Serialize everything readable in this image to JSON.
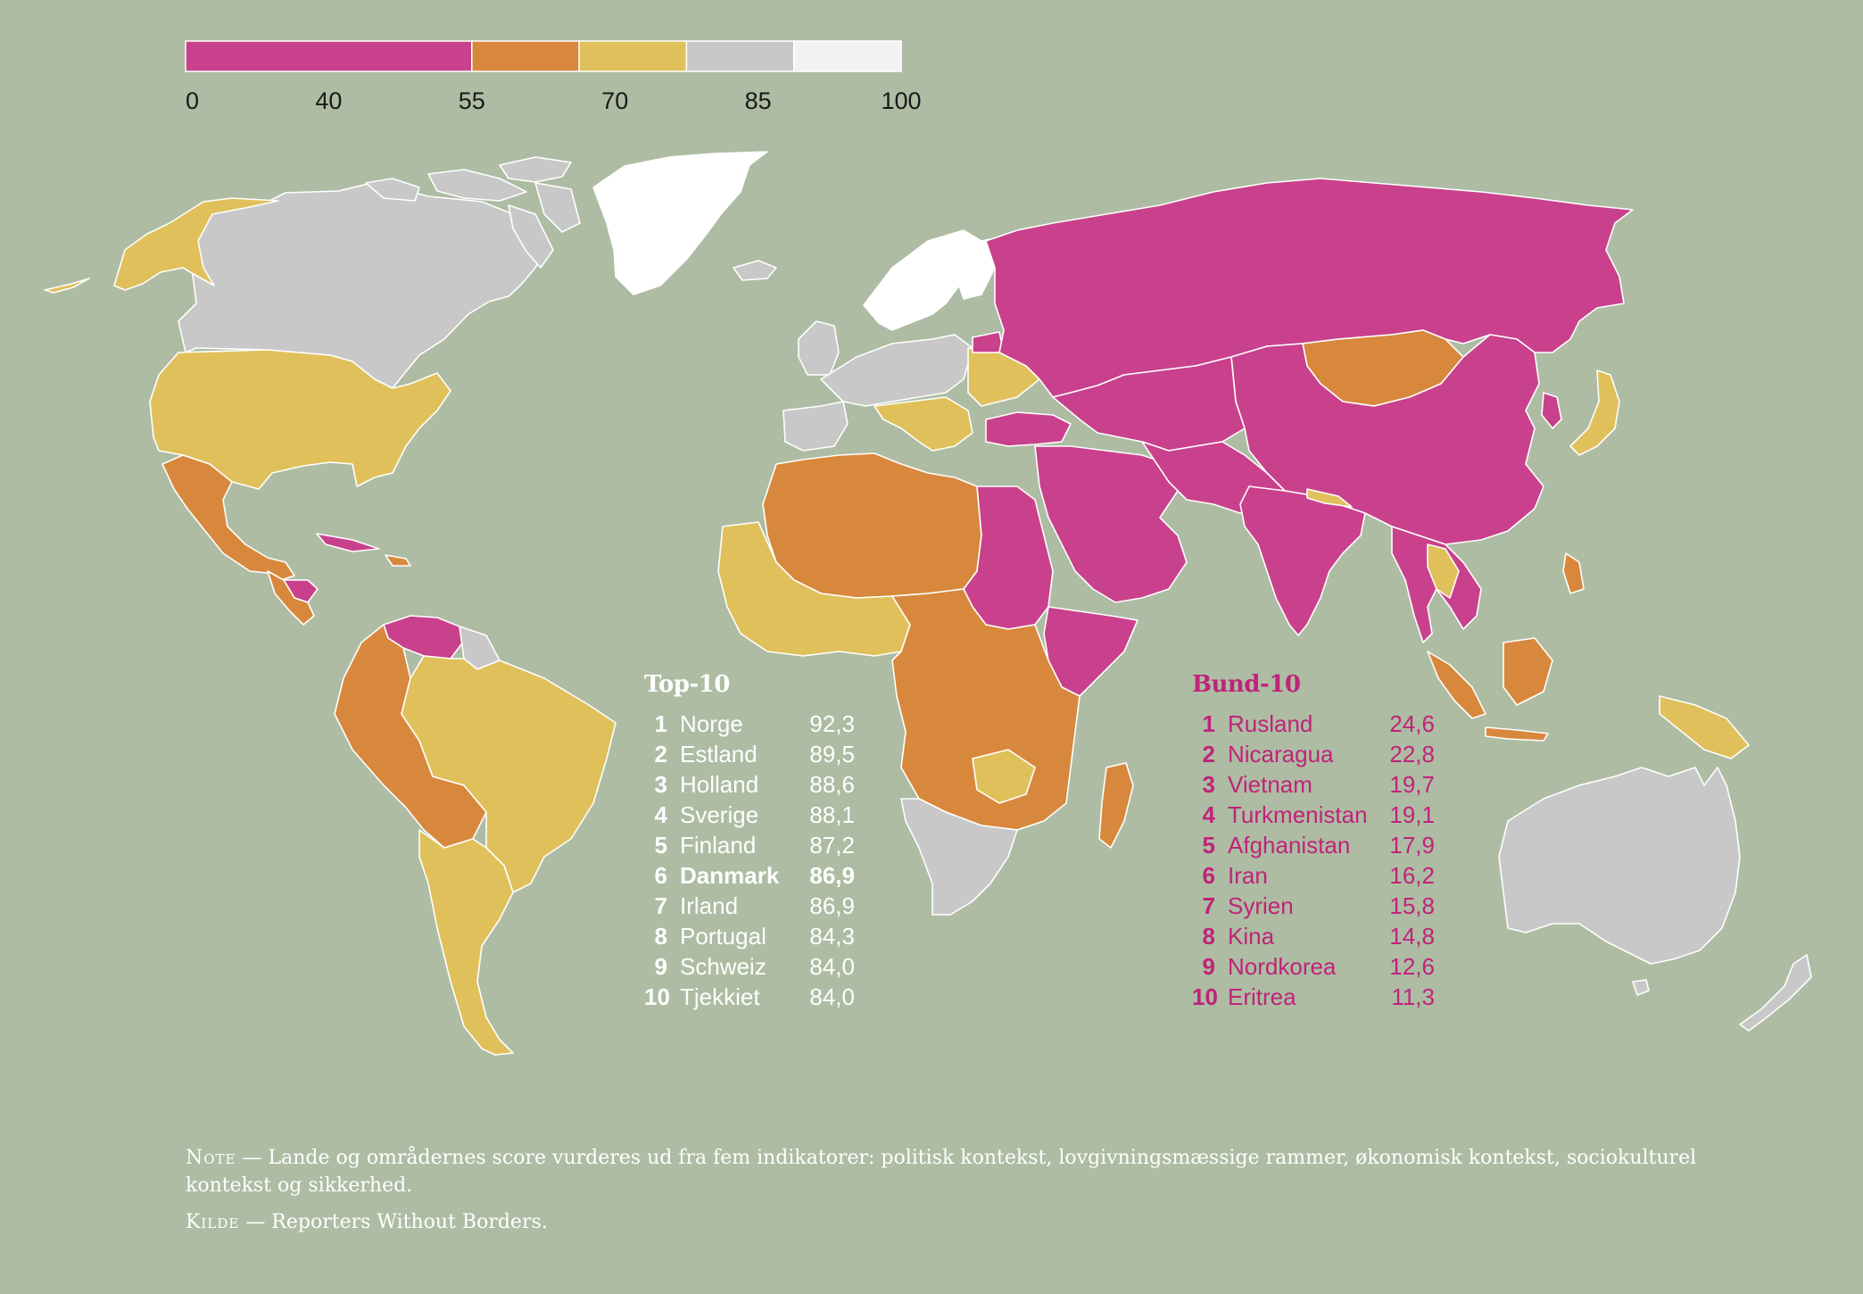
{
  "colors": {
    "background": "#adbca3",
    "band_0_40": "#c9418c",
    "band_40_55": "#d8883c",
    "band_55_70": "#e0c05a",
    "band_70_85": "#c8c8c8",
    "band_85_100": "#f2f2f2",
    "greenland": "#ffffff",
    "border": "#ffffff"
  },
  "legend": {
    "ticks": [
      "0",
      "40",
      "55",
      "70",
      "85",
      "100"
    ],
    "bands": [
      {
        "from": 0,
        "to": 40,
        "color": "#c9418c"
      },
      {
        "from": 40,
        "to": 55,
        "color": "#d8883c"
      },
      {
        "from": 55,
        "to": 70,
        "color": "#e0c05a"
      },
      {
        "from": 70,
        "to": 85,
        "color": "#c8c8c8"
      },
      {
        "from": 85,
        "to": 100,
        "color": "#f2f2f2"
      }
    ]
  },
  "top10": {
    "title": "Top-10",
    "rows": [
      {
        "rank": "1",
        "country": "Norge",
        "score": "92,3"
      },
      {
        "rank": "2",
        "country": "Estland",
        "score": "89,5"
      },
      {
        "rank": "3",
        "country": "Holland",
        "score": "88,6"
      },
      {
        "rank": "4",
        "country": "Sverige",
        "score": "88,1"
      },
      {
        "rank": "5",
        "country": "Finland",
        "score": "87,2"
      },
      {
        "rank": "6",
        "country": "Danmark",
        "score": "86,9"
      },
      {
        "rank": "7",
        "country": "Irland",
        "score": "86,9"
      },
      {
        "rank": "8",
        "country": "Portugal",
        "score": "84,3"
      },
      {
        "rank": "9",
        "country": "Schweiz",
        "score": "84,0"
      },
      {
        "rank": "10",
        "country": "Tjekkiet",
        "score": "84,0"
      }
    ]
  },
  "bund10": {
    "title": "Bund-10",
    "rows": [
      {
        "rank": "1",
        "country": "Rusland",
        "score": "24,6"
      },
      {
        "rank": "2",
        "country": "Nicaragua",
        "score": "22,8"
      },
      {
        "rank": "3",
        "country": "Vietnam",
        "score": "19,7"
      },
      {
        "rank": "4",
        "country": "Turkmenistan",
        "score": "19,1"
      },
      {
        "rank": "5",
        "country": "Afghanistan",
        "score": "17,9"
      },
      {
        "rank": "6",
        "country": "Iran",
        "score": "16,2"
      },
      {
        "rank": "7",
        "country": "Syrien",
        "score": "15,8"
      },
      {
        "rank": "8",
        "country": "Kina",
        "score": "14,8"
      },
      {
        "rank": "9",
        "country": "Nordkorea",
        "score": "12,6"
      },
      {
        "rank": "10",
        "country": "Eritrea",
        "score": "11,3"
      }
    ]
  },
  "footnotes": {
    "note_label": "Note",
    "note_text": " — Lande og områdernes score vurderes ud fra fem indikatorer: politisk kontekst, lovgivningsmæssige rammer, økonomisk kontekst, sociokulturel kontekst og sikkerhed.",
    "source_label": "Kilde",
    "source_text": " — Reporters Without Borders."
  }
}
